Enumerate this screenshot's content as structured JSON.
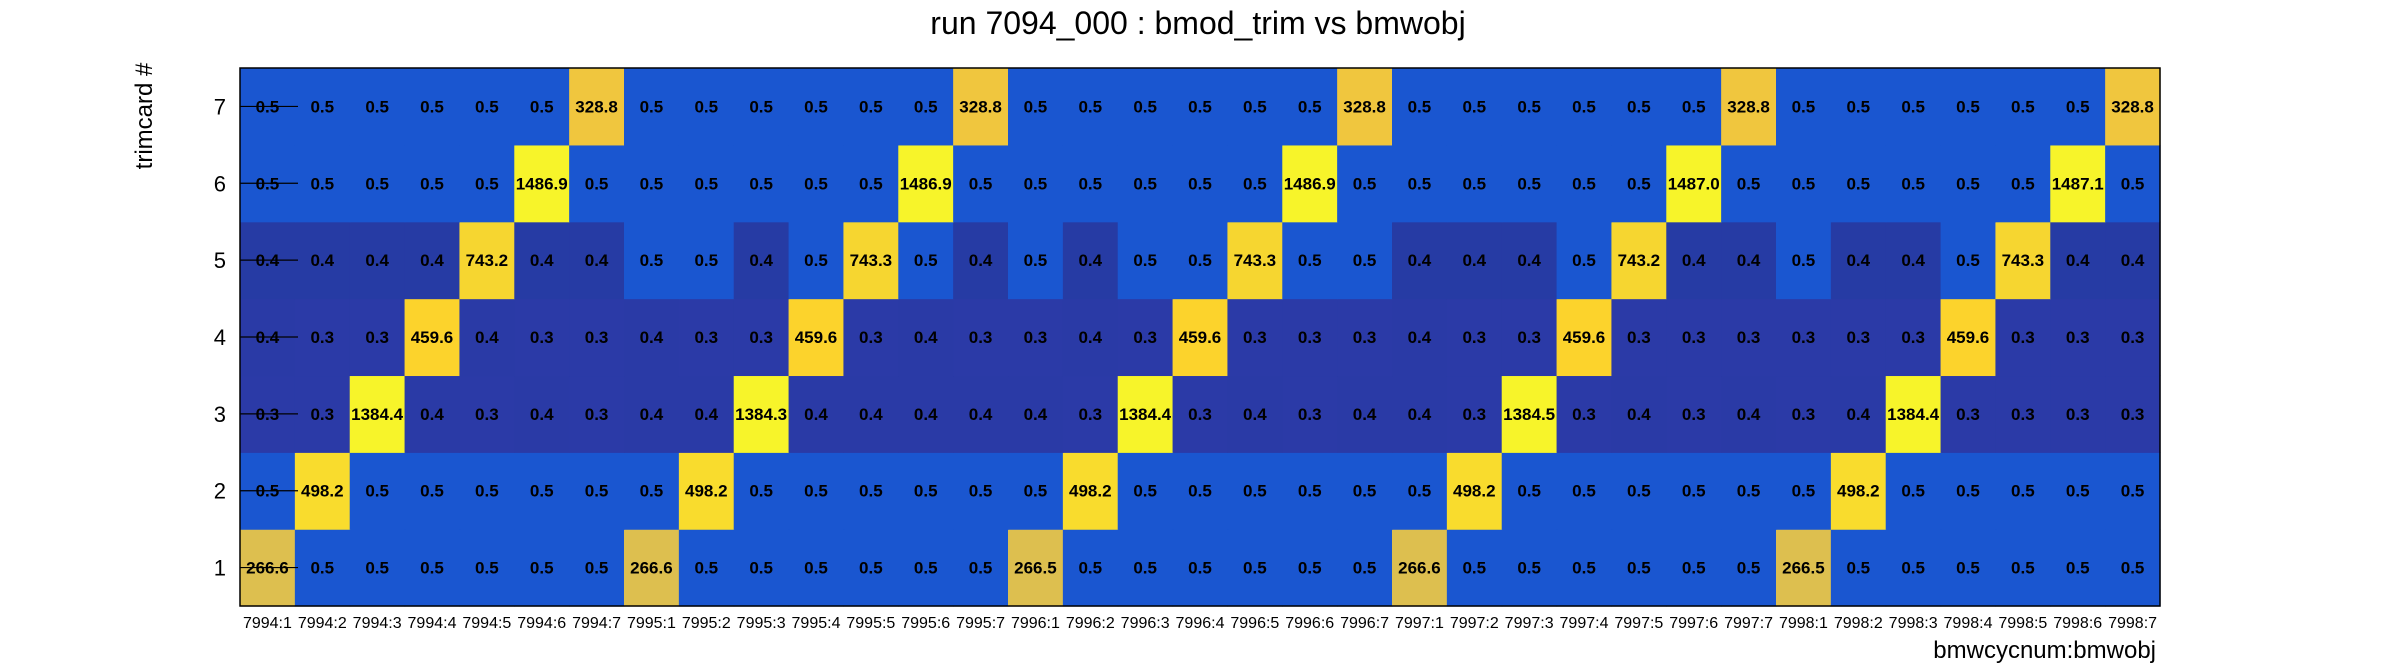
{
  "chart_data": {
    "type": "heatmap",
    "title": "run 7094_000 : bmod_trim vs bmwobj",
    "xlabel": "bmwcycnum:bmwobj",
    "ylabel": "trimcard #",
    "grid": false,
    "legend": "none",
    "x_categories": [
      "7994:1",
      "7994:2",
      "7994:3",
      "7994:4",
      "7994:5",
      "7994:6",
      "7994:7",
      "7995:1",
      "7995:2",
      "7995:3",
      "7995:4",
      "7995:5",
      "7995:6",
      "7995:7",
      "7996:1",
      "7996:2",
      "7996:3",
      "7996:4",
      "7996:5",
      "7996:6",
      "7996:7",
      "7997:1",
      "7997:2",
      "7997:3",
      "7997:4",
      "7997:5",
      "7997:6",
      "7997:7",
      "7998:1",
      "7998:2",
      "7998:3",
      "7998:4",
      "7998:5",
      "7998:6",
      "7998:7"
    ],
    "y_categories": [
      "1",
      "2",
      "3",
      "4",
      "5",
      "6",
      "7"
    ],
    "colors": {
      "blue_mid": "#1a56d0",
      "blue_dark": "#2a3aa6",
      "yellow": "#f8f32b",
      "gold": "#f3c43f",
      "tan": "#e1be4c",
      "mustard": "#fed230"
    },
    "values": [
      [
        "266.6",
        "0.5",
        "0.5",
        "0.5",
        "0.5",
        "0.5",
        "0.5",
        "266.6",
        "0.5",
        "0.5",
        "0.5",
        "0.5",
        "0.5",
        "0.5",
        "266.5",
        "0.5",
        "0.5",
        "0.5",
        "0.5",
        "0.5",
        "0.5",
        "266.6",
        "0.5",
        "0.5",
        "0.5",
        "0.5",
        "0.5",
        "0.5",
        "266.5",
        "0.5",
        "0.5",
        "0.5",
        "0.5",
        "0.5",
        "0.5"
      ],
      [
        "0.5",
        "498.2",
        "0.5",
        "0.5",
        "0.5",
        "0.5",
        "0.5",
        "0.5",
        "498.2",
        "0.5",
        "0.5",
        "0.5",
        "0.5",
        "0.5",
        "0.5",
        "498.2",
        "0.5",
        "0.5",
        "0.5",
        "0.5",
        "0.5",
        "0.5",
        "498.2",
        "0.5",
        "0.5",
        "0.5",
        "0.5",
        "0.5",
        "0.5",
        "498.2",
        "0.5",
        "0.5",
        "0.5",
        "0.5",
        "0.5"
      ],
      [
        "0.3",
        "0.3",
        "1384.4",
        "0.4",
        "0.3",
        "0.4",
        "0.3",
        "0.4",
        "0.4",
        "1384.3",
        "0.4",
        "0.4",
        "0.4",
        "0.4",
        "0.4",
        "0.3",
        "1384.4",
        "0.3",
        "0.4",
        "0.3",
        "0.4",
        "0.4",
        "0.3",
        "1384.5",
        "0.3",
        "0.4",
        "0.3",
        "0.4",
        "0.3",
        "0.4",
        "1384.4",
        "0.3",
        "0.3",
        "0.3",
        "0.3"
      ],
      [
        "0.4",
        "0.3",
        "0.3",
        "459.6",
        "0.4",
        "0.3",
        "0.3",
        "0.4",
        "0.3",
        "0.3",
        "459.6",
        "0.3",
        "0.4",
        "0.3",
        "0.3",
        "0.4",
        "0.3",
        "459.6",
        "0.3",
        "0.3",
        "0.3",
        "0.4",
        "0.3",
        "0.3",
        "459.6",
        "0.3",
        "0.3",
        "0.3",
        "0.3",
        "0.3",
        "0.3",
        "459.6",
        "0.3",
        "0.3",
        "0.3"
      ],
      [
        "0.4",
        "0.4",
        "0.4",
        "0.4",
        "743.2",
        "0.4",
        "0.4",
        "0.5",
        "0.5",
        "0.4",
        "0.5",
        "743.3",
        "0.5",
        "0.4",
        "0.5",
        "0.4",
        "0.5",
        "0.5",
        "743.3",
        "0.5",
        "0.5",
        "0.4",
        "0.4",
        "0.4",
        "0.5",
        "743.2",
        "0.4",
        "0.4",
        "0.5",
        "0.4",
        "0.4",
        "0.5",
        "743.3",
        "0.4",
        "0.4"
      ],
      [
        "0.5",
        "0.5",
        "0.5",
        "0.5",
        "0.5",
        "1486.9",
        "0.5",
        "0.5",
        "0.5",
        "0.5",
        "0.5",
        "0.5",
        "1486.9",
        "0.5",
        "0.5",
        "0.5",
        "0.5",
        "0.5",
        "0.5",
        "1486.9",
        "0.5",
        "0.5",
        "0.5",
        "0.5",
        "0.5",
        "0.5",
        "1487.0",
        "0.5",
        "0.5",
        "0.5",
        "0.5",
        "0.5",
        "0.5",
        "1487.1",
        "0.5"
      ],
      [
        "0.5",
        "0.5",
        "0.5",
        "0.5",
        "0.5",
        "0.5",
        "328.8",
        "0.5",
        "0.5",
        "0.5",
        "0.5",
        "0.5",
        "0.5",
        "328.8",
        "0.5",
        "0.5",
        "0.5",
        "0.5",
        "0.5",
        "0.5",
        "328.8",
        "0.5",
        "0.5",
        "0.5",
        "0.5",
        "0.5",
        "0.5",
        "328.8",
        "0.5",
        "0.5",
        "0.5",
        "0.5",
        "0.5",
        "0.5",
        "328.8"
      ]
    ]
  }
}
